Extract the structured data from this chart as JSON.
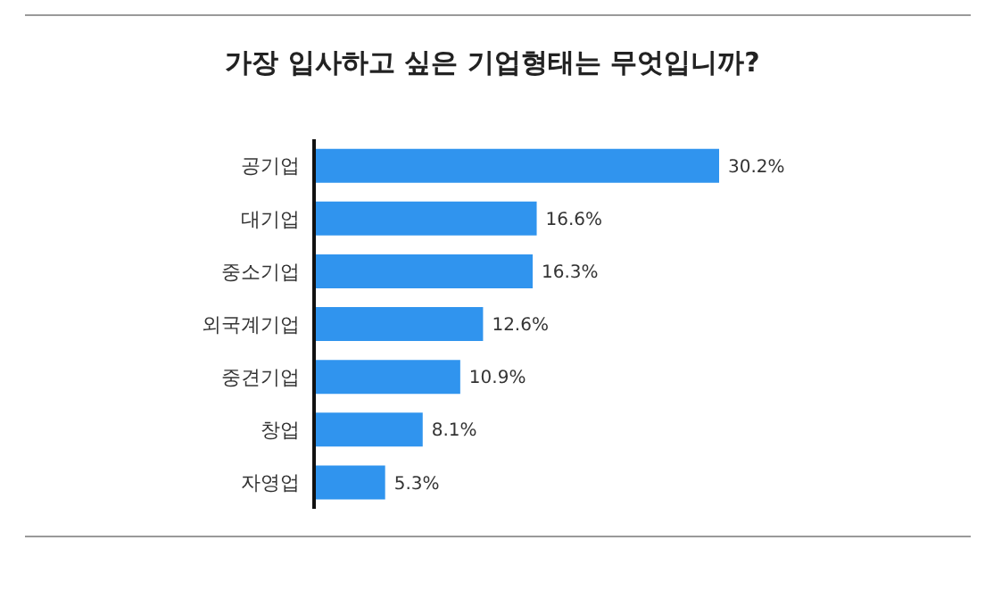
{
  "chart_data": {
    "type": "bar",
    "orientation": "horizontal",
    "title": "가장 입사하고 싶은 기업형태는 무엇입니까?",
    "categories": [
      "공기업",
      "대기업",
      "중소기업",
      "외국계기업",
      "중견기업",
      "창업",
      "자영업"
    ],
    "values": [
      30.2,
      16.6,
      16.3,
      12.6,
      10.9,
      8.1,
      5.3
    ],
    "value_labels": [
      "30.2%",
      "16.6%",
      "16.3%",
      "12.6%",
      "10.9%",
      "8.1%",
      "5.3%"
    ],
    "color": "#3094ee"
  }
}
